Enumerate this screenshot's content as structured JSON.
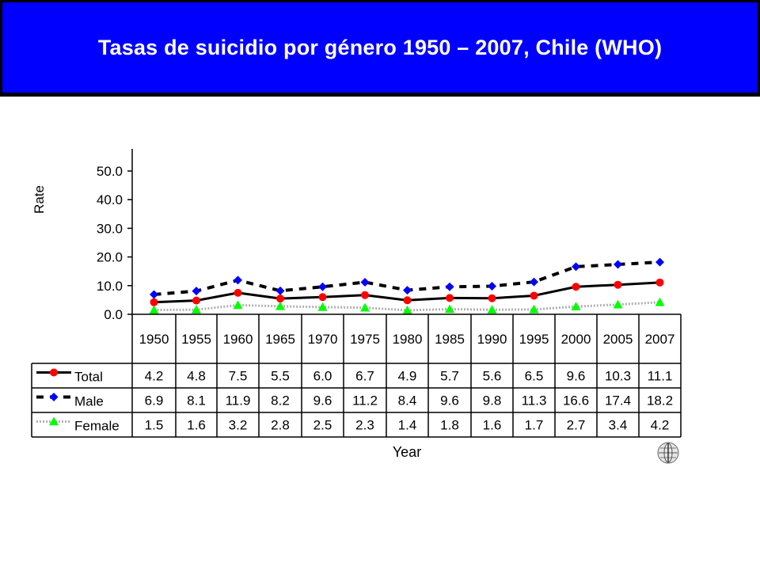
{
  "slide": {
    "title": "Tasas de suicidio por género 1950 – 2007, Chile (WHO)"
  },
  "colors": {
    "title_background": "#0000ff",
    "title_text": "#ffffff",
    "total": "#ff0000",
    "male": "#0000ff",
    "female": "#00ff00",
    "female_line": "#b0b0b0"
  },
  "icons": {
    "logo": "who-emblem-icon"
  },
  "chart_data": {
    "type": "line",
    "ylabel": "Rate",
    "xlabel": "Year",
    "ylim": [
      0,
      50
    ],
    "yticks": [
      "0.0",
      "10.0",
      "20.0",
      "30.0",
      "40.0",
      "50.0"
    ],
    "ytick_values": [
      0,
      10,
      20,
      30,
      40,
      50
    ],
    "categories": [
      "1950",
      "1955",
      "1960",
      "1965",
      "1970",
      "1975",
      "1980",
      "1985",
      "1990",
      "1995",
      "2000",
      "2005",
      "2007"
    ],
    "grid": false,
    "legend": "data table below plot",
    "series": [
      {
        "name": "Total",
        "values": [
          4.2,
          4.8,
          7.5,
          5.5,
          6.0,
          6.7,
          4.9,
          5.7,
          5.6,
          6.5,
          9.6,
          10.3,
          11.1
        ],
        "labels": [
          "4.2",
          "4.8",
          "7.5",
          "5.5",
          "6.0",
          "6.7",
          "4.9",
          "5.7",
          "5.6",
          "6.5",
          "9.6",
          "10.3",
          "11.1"
        ],
        "color": "#ff0000",
        "line": "solid black",
        "marker": "circle"
      },
      {
        "name": "Male",
        "values": [
          6.9,
          8.1,
          11.9,
          8.2,
          9.6,
          11.2,
          8.4,
          9.6,
          9.8,
          11.3,
          16.6,
          17.4,
          18.2
        ],
        "labels": [
          "6.9",
          "8.1",
          "11.9",
          "8.2",
          "9.6",
          "11.2",
          "8.4",
          "9.6",
          "9.8",
          "11.3",
          "16.6",
          "17.4",
          "18.2"
        ],
        "color": "#0000ff",
        "line": "dashed black",
        "marker": "diamond"
      },
      {
        "name": "Female",
        "values": [
          1.5,
          1.6,
          3.2,
          2.8,
          2.5,
          2.3,
          1.4,
          1.8,
          1.6,
          1.7,
          2.7,
          3.4,
          4.2
        ],
        "labels": [
          "1.5",
          "1.6",
          "3.2",
          "2.8",
          "2.5",
          "2.3",
          "1.4",
          "1.8",
          "1.6",
          "1.7",
          "2.7",
          "3.4",
          "4.2"
        ],
        "color": "#00ff00",
        "line": "dotted grey",
        "marker": "triangle"
      }
    ]
  }
}
